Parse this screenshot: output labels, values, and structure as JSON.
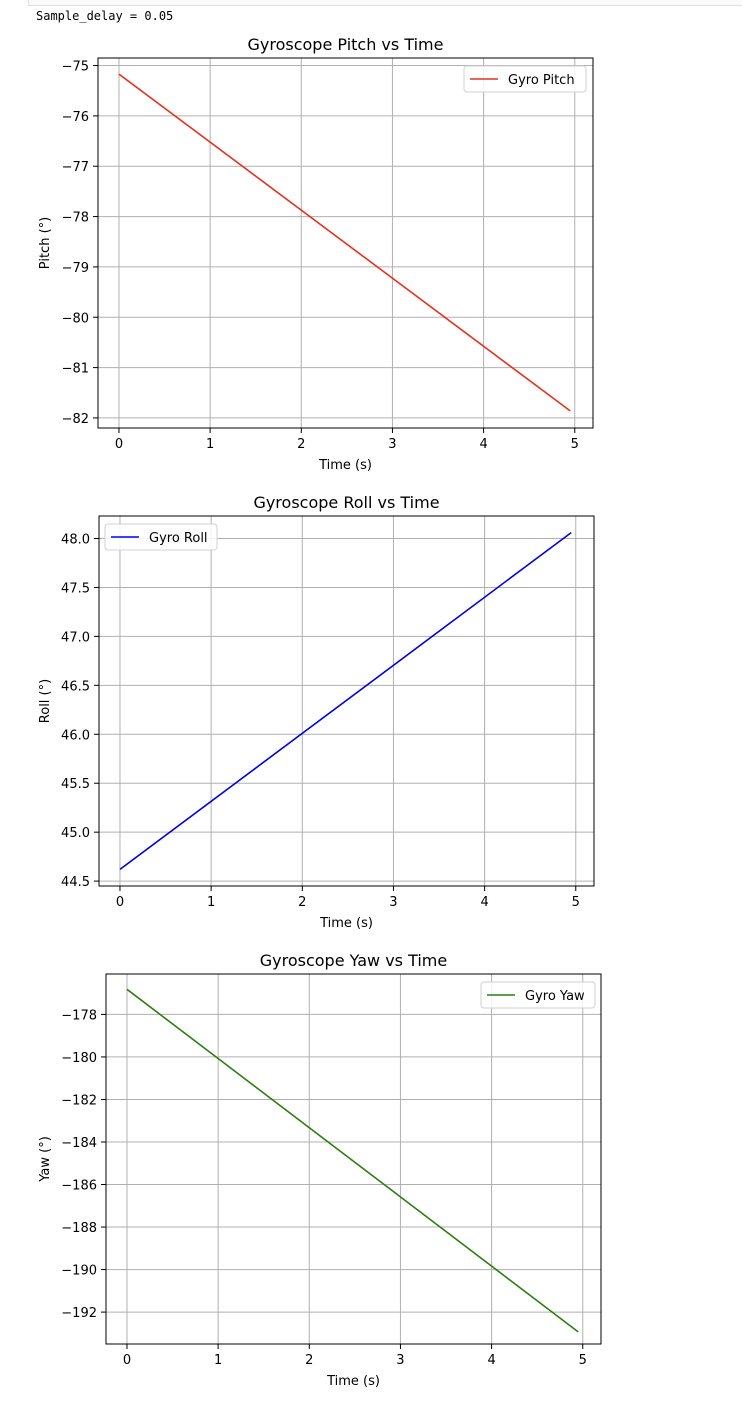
{
  "output": {
    "text": "Sample_delay = 0.05"
  },
  "chart_data": [
    {
      "type": "line",
      "title": "Gyroscope Pitch vs Time",
      "xlabel": "Time (s)",
      "ylabel": "Pitch (°)",
      "xlim": [
        -0.23,
        5.2
      ],
      "ylim": [
        -82.2,
        -74.85
      ],
      "xticks": [
        0,
        1,
        2,
        3,
        4,
        5
      ],
      "yticks": [
        -75,
        -76,
        -77,
        -78,
        -79,
        -80,
        -81,
        -82
      ],
      "ytick_labels": [
        "−75",
        "−76",
        "−77",
        "−78",
        "−79",
        "−80",
        "−81",
        "−82"
      ],
      "grid": true,
      "legend": "top-right",
      "series": [
        {
          "name": "Gyro Pitch",
          "color": "#e8301c",
          "x": [
            0,
            4.95
          ],
          "y": [
            -75.17,
            -81.86
          ]
        }
      ]
    },
    {
      "type": "line",
      "title": "Gyroscope Roll vs Time",
      "xlabel": "Time (s)",
      "ylabel": "Roll (°)",
      "xlim": [
        -0.23,
        5.2
      ],
      "ylim": [
        44.45,
        48.23
      ],
      "xticks": [
        0,
        1,
        2,
        3,
        4,
        5
      ],
      "yticks": [
        44.5,
        45.0,
        45.5,
        46.0,
        46.5,
        47.0,
        47.5,
        48.0
      ],
      "ytick_labels": [
        "44.5",
        "45.0",
        "45.5",
        "46.0",
        "46.5",
        "47.0",
        "47.5",
        "48.0"
      ],
      "grid": true,
      "legend": "top-left",
      "series": [
        {
          "name": "Gyro Roll",
          "color": "#0000e6",
          "x": [
            0,
            4.95
          ],
          "y": [
            44.62,
            48.06
          ]
        }
      ]
    },
    {
      "type": "line",
      "title": "Gyroscope Yaw vs Time",
      "xlabel": "Time (s)",
      "ylabel": "Yaw (°)",
      "xlim": [
        -0.23,
        5.2
      ],
      "ylim": [
        -193.5,
        -176.1
      ],
      "xticks": [
        0,
        1,
        2,
        3,
        4,
        5
      ],
      "yticks": [
        -178,
        -180,
        -182,
        -184,
        -186,
        -188,
        -190,
        -192
      ],
      "ytick_labels": [
        "−178",
        "−180",
        "−182",
        "−184",
        "−186",
        "−188",
        "−190",
        "−192"
      ],
      "grid": true,
      "legend": "top-right",
      "series": [
        {
          "name": "Gyro Yaw",
          "color": "#2e7d12",
          "x": [
            0,
            4.95
          ],
          "y": [
            -176.82,
            -192.93
          ]
        }
      ]
    }
  ]
}
